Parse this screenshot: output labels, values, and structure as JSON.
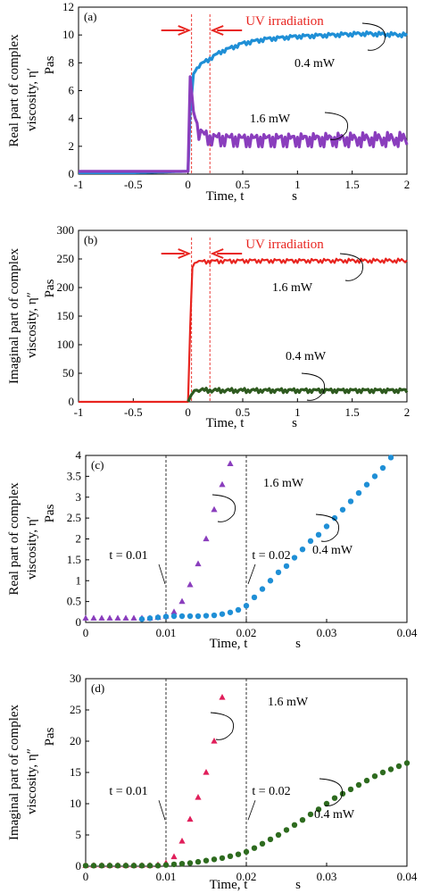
{
  "chart_data": [
    {
      "type": "line",
      "panel": "(a)",
      "ylabel_line1": "Real part of complex",
      "ylabel_line2": "viscosity, η′",
      "yunit": "Pas",
      "xlabel": "Time, t",
      "xunit": "s",
      "xlim": [
        -1,
        2
      ],
      "ylim": [
        0,
        12
      ],
      "xticks": [
        "-1",
        "-0.5",
        "0",
        "0.5",
        "1",
        "1.5",
        "2"
      ],
      "yticks": [
        "0",
        "2",
        "4",
        "6",
        "8",
        "10",
        "12"
      ],
      "annotation": "UV irradiation",
      "uv_start": 0.0,
      "uv_end": 0.2,
      "series": [
        {
          "name": "0.4 mW",
          "color": "#1f8fd6",
          "x": [
            -1,
            -0.5,
            0,
            0.02,
            0.05,
            0.1,
            0.2,
            0.3,
            0.4,
            0.5,
            0.7,
            1.0,
            1.3,
            1.6,
            2.0
          ],
          "y": [
            0.1,
            0.1,
            0.2,
            4.5,
            7.2,
            7.8,
            8.3,
            8.8,
            9.1,
            9.4,
            9.7,
            9.9,
            10.0,
            10.1,
            10.0
          ]
        },
        {
          "name": "1.6 mW",
          "color": "#8a3dbd",
          "x": [
            -1,
            -0.5,
            0,
            0.02,
            0.05,
            0.1,
            0.2,
            0.5,
            1.0,
            1.5,
            2.0
          ],
          "y": [
            0.2,
            0.2,
            0.2,
            7.0,
            4.5,
            3.0,
            2.6,
            2.5,
            2.5,
            2.5,
            2.5
          ]
        }
      ]
    },
    {
      "type": "line",
      "panel": "(b)",
      "ylabel_line1": "Imaginal part of complex",
      "ylabel_line2": "viscosity, η″",
      "yunit": "Pas",
      "xlabel": "Time, t",
      "xunit": "s",
      "xlim": [
        -1,
        2
      ],
      "ylim": [
        0,
        300
      ],
      "xticks": [
        "-1",
        "-0.5",
        "0",
        "0.5",
        "1",
        "1.5",
        "2"
      ],
      "yticks": [
        "0",
        "50",
        "100",
        "150",
        "200",
        "250",
        "300"
      ],
      "annotation": "UV irradiation",
      "uv_start": 0.0,
      "uv_end": 0.2,
      "series": [
        {
          "name": "1.6 mW",
          "color": "#e8241f",
          "x": [
            -1,
            -0.5,
            0,
            0.02,
            0.04,
            0.06,
            0.1,
            0.2,
            0.5,
            1.0,
            1.5,
            2.0
          ],
          "y": [
            0,
            0,
            0,
            130,
            235,
            243,
            245,
            246,
            247,
            247,
            247,
            247
          ]
        },
        {
          "name": "0.4 mW",
          "color": "#2e5a1f",
          "x": [
            0.0,
            0.03,
            0.06,
            0.1,
            0.2,
            0.5,
            1.0,
            1.5,
            2.0
          ],
          "y": [
            0,
            12,
            20,
            21,
            20,
            20,
            20,
            20,
            20
          ]
        }
      ]
    },
    {
      "type": "scatter",
      "panel": "(c)",
      "ylabel_line1": "Real part of complex",
      "ylabel_line2": "viscosity, η′",
      "yunit": "Pas",
      "xlabel": "Time, t",
      "xunit": "s",
      "xlim": [
        0,
        0.04
      ],
      "ylim": [
        0,
        4
      ],
      "xticks": [
        "0",
        "0.01",
        "0.02",
        "0.03",
        "0.04"
      ],
      "yticks": [
        "0",
        "0.5",
        "1",
        "1.5",
        "2",
        "2.5",
        "3",
        "3.5",
        "4"
      ],
      "vlines": [
        0.01,
        0.02
      ],
      "vline_labels": [
        "t = 0.01",
        "t = 0.02"
      ],
      "series": [
        {
          "name": "1.6 mW",
          "color": "#8a3dbd",
          "marker": "triangle",
          "x": [
            0.0,
            0.001,
            0.002,
            0.003,
            0.004,
            0.005,
            0.006,
            0.007,
            0.008,
            0.009,
            0.01,
            0.011,
            0.012,
            0.013,
            0.014,
            0.015,
            0.016,
            0.017,
            0.018
          ],
          "y": [
            0.1,
            0.1,
            0.1,
            0.1,
            0.1,
            0.1,
            0.1,
            0.1,
            0.1,
            0.12,
            0.15,
            0.25,
            0.5,
            0.9,
            1.4,
            2.0,
            2.7,
            3.3,
            3.8
          ]
        },
        {
          "name": "0.4 mW",
          "color": "#1f8fd6",
          "marker": "circle",
          "x": [
            0.007,
            0.008,
            0.009,
            0.01,
            0.011,
            0.012,
            0.013,
            0.014,
            0.015,
            0.016,
            0.017,
            0.018,
            0.019,
            0.02,
            0.021,
            0.022,
            0.023,
            0.024,
            0.025,
            0.026,
            0.027,
            0.028,
            0.029,
            0.03,
            0.031,
            0.032,
            0.033,
            0.034,
            0.035,
            0.036,
            0.037,
            0.038
          ],
          "y": [
            0.08,
            0.1,
            0.12,
            0.14,
            0.15,
            0.15,
            0.15,
            0.15,
            0.16,
            0.17,
            0.2,
            0.24,
            0.3,
            0.4,
            0.6,
            0.8,
            1.0,
            1.2,
            1.35,
            1.55,
            1.75,
            1.95,
            2.1,
            2.3,
            2.5,
            2.7,
            2.9,
            3.1,
            3.3,
            3.5,
            3.7,
            3.95
          ]
        }
      ]
    },
    {
      "type": "scatter",
      "panel": "(d)",
      "ylabel_line1": "Imaginal part of complex",
      "ylabel_line2": "viscosity, η″",
      "yunit": "Pas",
      "xlabel": "Time, t",
      "xunit": "s",
      "xlim": [
        0,
        0.04
      ],
      "ylim": [
        0,
        30
      ],
      "xticks": [
        "0",
        "0.01",
        "0.02",
        "0.03",
        "0.04"
      ],
      "yticks": [
        "0",
        "5",
        "10",
        "15",
        "20",
        "25",
        "30"
      ],
      "vlines": [
        0.01,
        0.02
      ],
      "vline_labels": [
        "t = 0.01",
        "t = 0.02"
      ],
      "series": [
        {
          "name": "1.6 mW",
          "color": "#e01e5a",
          "marker": "triangle",
          "x": [
            0.0,
            0.001,
            0.002,
            0.003,
            0.004,
            0.005,
            0.006,
            0.007,
            0.008,
            0.009,
            0.01,
            0.011,
            0.012,
            0.013,
            0.014,
            0.015,
            0.016,
            0.017
          ],
          "y": [
            0.1,
            0.1,
            0.1,
            0.1,
            0.1,
            0.1,
            0.1,
            0.1,
            0.1,
            0.2,
            0.5,
            1.5,
            4.0,
            7.5,
            11.0,
            15.0,
            20.0,
            27.0
          ]
        },
        {
          "name": "0.4 mW",
          "color": "#2e6b1f",
          "marker": "circle",
          "x": [
            0.0,
            0.001,
            0.002,
            0.003,
            0.004,
            0.005,
            0.006,
            0.007,
            0.008,
            0.009,
            0.01,
            0.011,
            0.012,
            0.013,
            0.014,
            0.015,
            0.016,
            0.017,
            0.018,
            0.019,
            0.02,
            0.021,
            0.022,
            0.023,
            0.024,
            0.025,
            0.026,
            0.027,
            0.028,
            0.029,
            0.03,
            0.031,
            0.032,
            0.033,
            0.034,
            0.035,
            0.036,
            0.037,
            0.038,
            0.039,
            0.04
          ],
          "y": [
            0.1,
            0.1,
            0.1,
            0.1,
            0.1,
            0.1,
            0.1,
            0.1,
            0.1,
            0.1,
            0.2,
            0.3,
            0.4,
            0.5,
            0.7,
            0.9,
            1.1,
            1.3,
            1.6,
            1.9,
            2.3,
            2.9,
            3.6,
            4.3,
            5.0,
            5.8,
            6.6,
            7.4,
            8.3,
            9.1,
            10.0,
            10.9,
            11.6,
            12.3,
            13.0,
            13.7,
            14.4,
            15.0,
            15.5,
            16.0,
            16.5
          ]
        }
      ]
    }
  ]
}
